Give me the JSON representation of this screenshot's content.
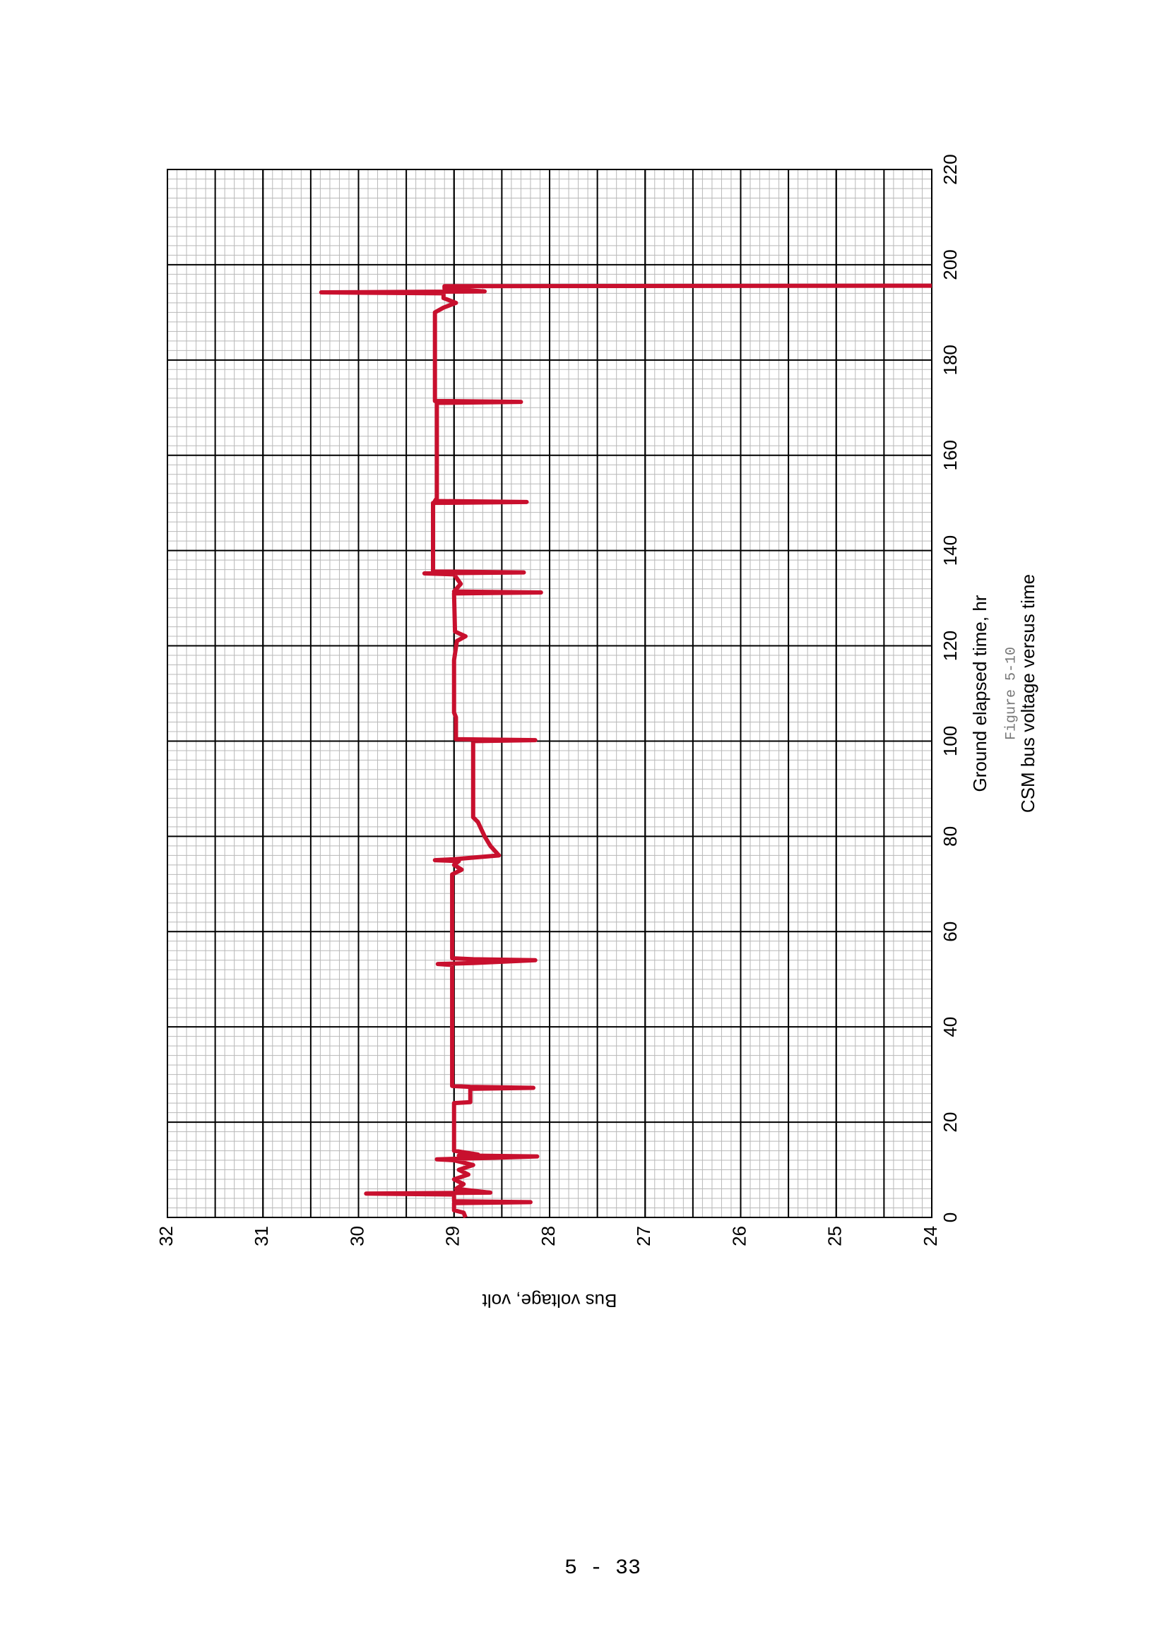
{
  "chart_data": {
    "type": "line",
    "title": "CSM bus voltage versus time",
    "figure_label": "Figure 5-10",
    "xlabel": "Ground elapsed time, hr",
    "ylabel": "Bus voltage, volt",
    "x": [
      0,
      1,
      1.5,
      3,
      3.2,
      3.4,
      4.8,
      5,
      5.2,
      6,
      7,
      8,
      9,
      10,
      11,
      12,
      12.2,
      12.5,
      12.8,
      13,
      13.2,
      14,
      24,
      24.2,
      27,
      27.2,
      27.4,
      27.6,
      53,
      53.2,
      53.4,
      54,
      54.2,
      54.4,
      55,
      72,
      73,
      74,
      74.8,
      75,
      75.2,
      76,
      78,
      80,
      83,
      84,
      100,
      100.2,
      100.4,
      105,
      106,
      117,
      121,
      122,
      123,
      131,
      131.2,
      131.4,
      133,
      135,
      135.2,
      135.4,
      135.6,
      150,
      150.2,
      150.4,
      151,
      171,
      171.2,
      171.4,
      190,
      191,
      192,
      193,
      194,
      194.2,
      194.4,
      195,
      195.5,
      195.6
    ],
    "values": [
      28.88,
      28.9,
      29.0,
      29.0,
      28.2,
      29.0,
      29.0,
      29.92,
      28.62,
      28.98,
      28.9,
      29.0,
      28.85,
      28.95,
      28.8,
      29.0,
      29.18,
      28.6,
      28.13,
      28.95,
      28.75,
      29.0,
      29.0,
      28.83,
      28.83,
      28.17,
      28.83,
      29.02,
      29.02,
      29.17,
      28.8,
      28.15,
      28.8,
      29.02,
      29.02,
      29.02,
      28.92,
      29.0,
      28.95,
      29.2,
      29.0,
      28.53,
      28.62,
      28.68,
      28.75,
      28.8,
      28.8,
      28.15,
      28.98,
      28.98,
      29.0,
      29.0,
      28.97,
      28.88,
      28.99,
      29.0,
      28.09,
      29.0,
      28.93,
      29.0,
      29.31,
      28.27,
      29.22,
      29.22,
      28.24,
      29.2,
      29.18,
      29.18,
      28.3,
      29.2,
      29.2,
      29.11,
      28.98,
      29.11,
      29.11,
      30.39,
      28.68,
      29.1,
      29.1,
      24
    ],
    "color": "#c8102e",
    "xlim": [
      0,
      220
    ],
    "xticks": [
      0,
      20,
      40,
      60,
      80,
      100,
      120,
      140,
      160,
      180,
      200,
      220
    ],
    "ylim": [
      24,
      32
    ],
    "yticks": [
      24,
      25,
      26,
      27,
      28,
      29,
      30,
      31,
      32
    ],
    "grid": true
  },
  "page_number": "5 - 33"
}
